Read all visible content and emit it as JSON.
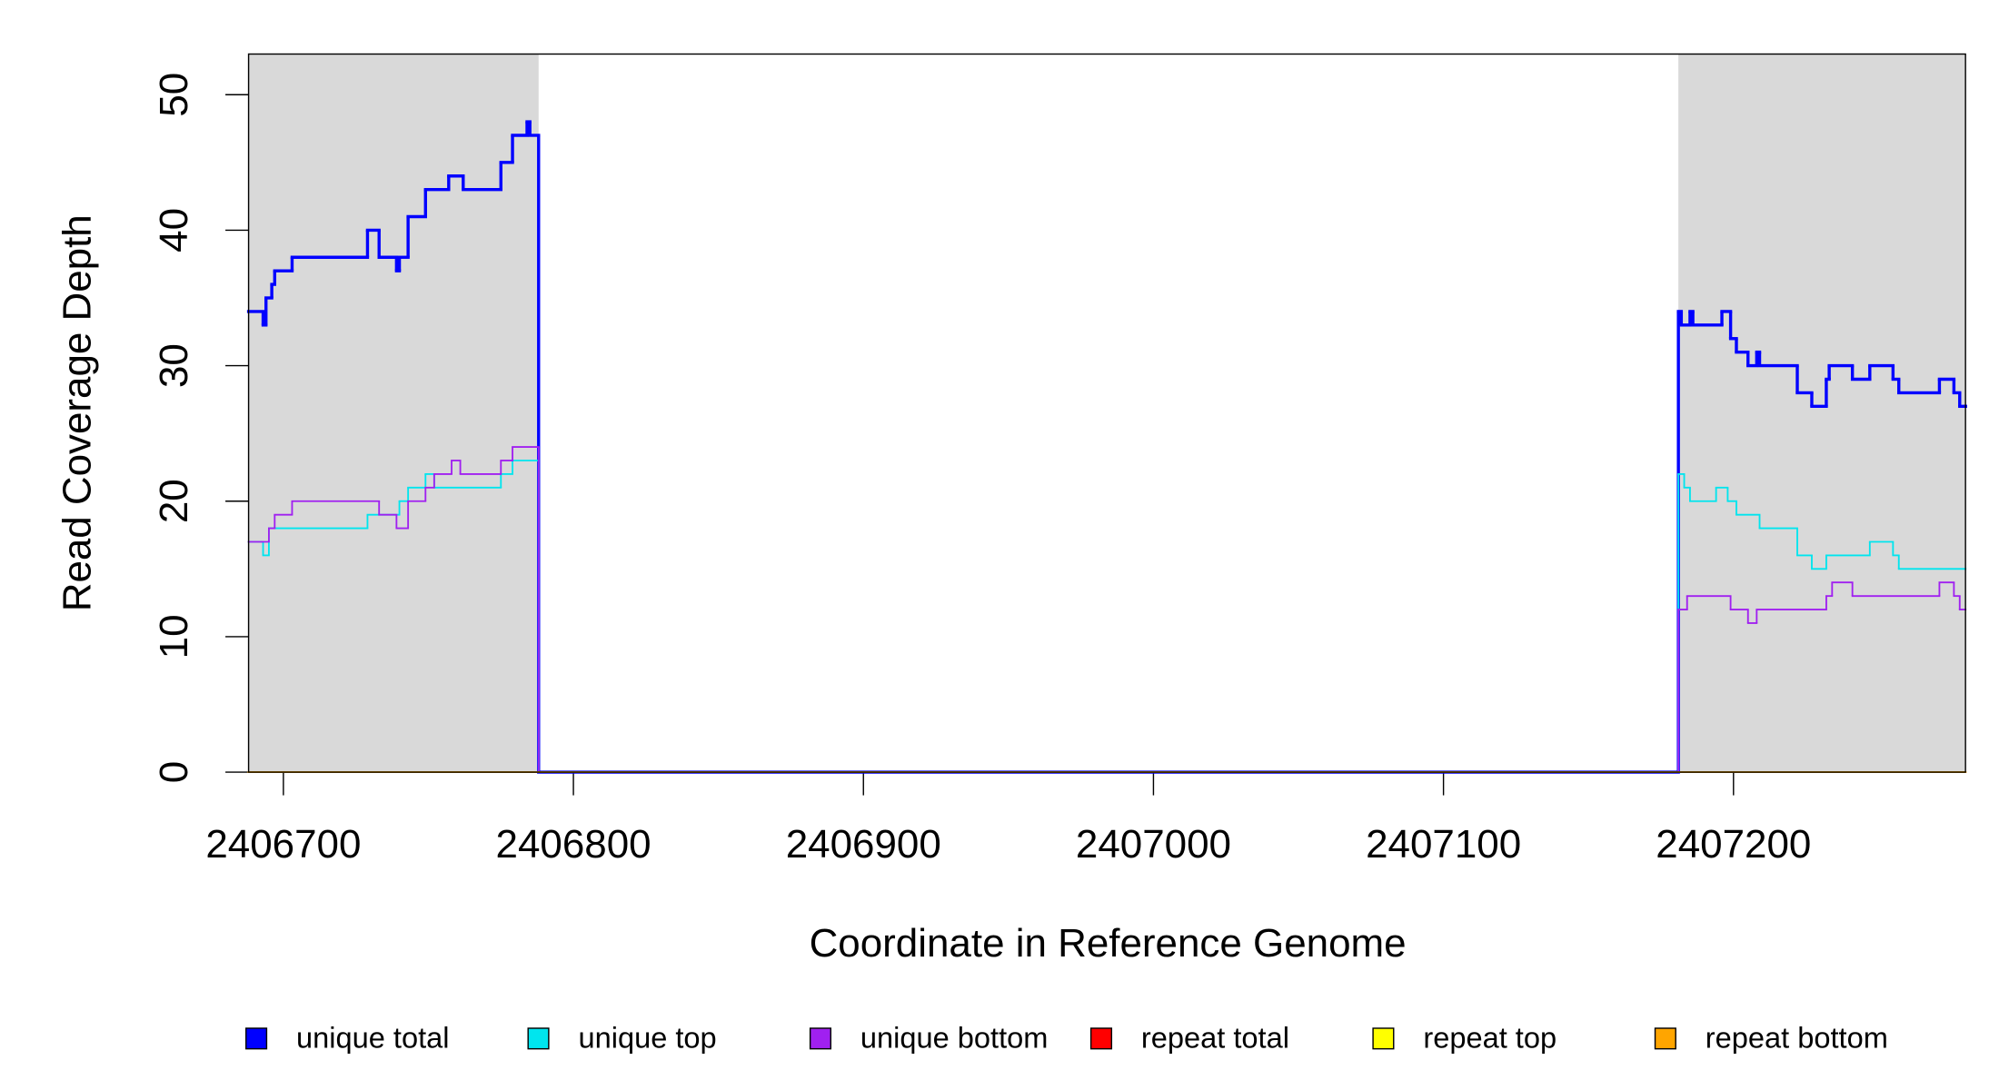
{
  "chart_data": {
    "type": "line",
    "step": true,
    "x_label": "Coordinate in Reference Genome",
    "y_label": "Read Coverage Depth",
    "xlim": [
      2406688,
      2407280
    ],
    "ylim": [
      0,
      53
    ],
    "xticks": [
      2406700,
      2406800,
      2406900,
      2407000,
      2407100,
      2407200
    ],
    "yticks": [
      0,
      10,
      20,
      30,
      40,
      50
    ],
    "highlight_color": "#d9d9d9",
    "highlights": [
      [
        2406688,
        2406788
      ],
      [
        2407181,
        2407280
      ]
    ],
    "series": [
      {
        "name": "unique total",
        "color": "#0000ff",
        "width": 2.4,
        "x": [
          2406688,
          2406693,
          2406694,
          2406696,
          2406697,
          2406703,
          2406729,
          2406733,
          2406739,
          2406740,
          2406743,
          2406749,
          2406757,
          2406762,
          2406775,
          2406779,
          2406784,
          2406785,
          2406788,
          2407181,
          2407182,
          2407185,
          2407186,
          2407196,
          2407199,
          2407201,
          2407205,
          2407208,
          2407209,
          2407222,
          2407227,
          2407232,
          2407233,
          2407241,
          2407247,
          2407255,
          2407257,
          2407271,
          2407276,
          2407278,
          2407280
        ],
        "values": [
          34,
          33,
          35,
          36,
          37,
          38,
          40,
          38,
          37,
          38,
          41,
          43,
          44,
          43,
          45,
          47,
          48,
          47,
          0,
          34,
          33,
          34,
          33,
          34,
          32,
          31,
          30,
          31,
          30,
          28,
          27,
          29,
          30,
          29,
          30,
          29,
          28,
          29,
          28,
          27,
          27
        ]
      },
      {
        "name": "unique top",
        "color": "#00e5ee",
        "width": 1.3,
        "x": [
          2406688,
          2406693,
          2406695,
          2406729,
          2406740,
          2406743,
          2406749,
          2406752,
          2406775,
          2406779,
          2406788,
          2407181,
          2407183,
          2407185,
          2407194,
          2407198,
          2407201,
          2407209,
          2407222,
          2407227,
          2407232,
          2407247,
          2407255,
          2407257,
          2407280
        ],
        "values": [
          17,
          16,
          18,
          19,
          20,
          21,
          22,
          21,
          22,
          23,
          0,
          22,
          21,
          20,
          21,
          20,
          19,
          18,
          16,
          15,
          16,
          17,
          16,
          15,
          15
        ]
      },
      {
        "name": "unique bottom",
        "color": "#a020f0",
        "width": 1.3,
        "x": [
          2406688,
          2406695,
          2406697,
          2406703,
          2406733,
          2406739,
          2406743,
          2406749,
          2406752,
          2406758,
          2406761,
          2406775,
          2406779,
          2406788,
          2407181,
          2407184,
          2407199,
          2407205,
          2407208,
          2407232,
          2407234,
          2407241,
          2407271,
          2407276,
          2407278,
          2407280
        ],
        "values": [
          17,
          18,
          19,
          20,
          19,
          18,
          20,
          21,
          22,
          23,
          22,
          23,
          24,
          0,
          12,
          13,
          12,
          11,
          12,
          13,
          14,
          13,
          14,
          13,
          12,
          12
        ]
      },
      {
        "name": "repeat total",
        "color": "#ff0000",
        "width": 1.3,
        "x": [
          2406688,
          2407280
        ],
        "values": [
          0,
          0
        ]
      },
      {
        "name": "repeat top",
        "color": "#ffff00",
        "width": 1.3,
        "x": [
          2406688,
          2407280
        ],
        "values": [
          0,
          0
        ]
      },
      {
        "name": "repeat bottom",
        "color": "#ffa500",
        "width": 1.3,
        "x": [
          2406688,
          2407280
        ],
        "values": [
          0,
          0
        ]
      }
    ]
  }
}
